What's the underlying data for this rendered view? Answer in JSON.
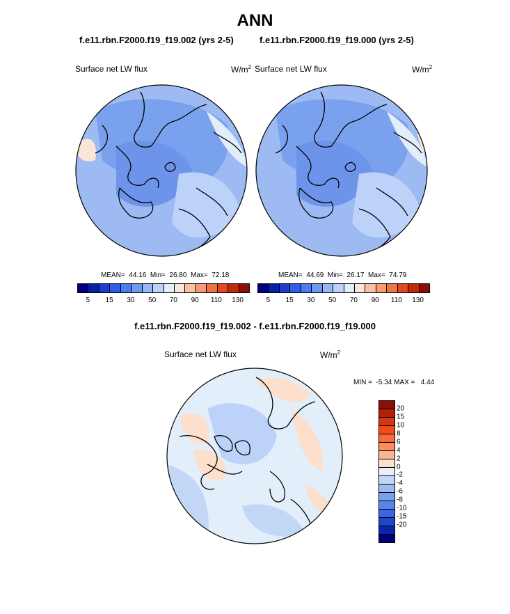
{
  "title": "ANN",
  "panels": [
    {
      "case_title": "f.e11.rbn.F2000.f19_f19.002 (yrs 2-5)",
      "variable": "Surface net LW flux",
      "units": "W/m",
      "units_sup": "2",
      "mean_label": "MEAN=",
      "mean": "44.16",
      "min_label": "Min=",
      "min": "26.80",
      "max_label": "Max=",
      "max": "72.18"
    },
    {
      "case_title": "f.e11.rbn.F2000.f19_f19.000 (yrs 2-5)",
      "variable": "Surface net LW flux",
      "units": "W/m",
      "units_sup": "2",
      "mean_label": "MEAN=",
      "mean": "44.69",
      "min_label": "Min=",
      "min": "26.17",
      "max_label": "Max=",
      "max": "74.79"
    }
  ],
  "colorbar_abs": {
    "colors": [
      "#00007f",
      "#0a1ea8",
      "#1d3fd1",
      "#2f5ee8",
      "#4a7ef0",
      "#6d9bf2",
      "#95b8f6",
      "#bcd2f8",
      "#e3eefb",
      "#fbe4d8",
      "#f9c1a3",
      "#f59c73",
      "#f07544",
      "#e34a20",
      "#c12a0a",
      "#8c0e05"
    ],
    "ticks": [
      "5",
      "15",
      "30",
      "50",
      "70",
      "90",
      "110",
      "130"
    ]
  },
  "difference": {
    "title": "f.e11.rbn.F2000.f19_f19.002 - f.e11.rbn.F2000.f19_f19.000",
    "variable": "Surface net LW flux",
    "units": "W/m",
    "units_sup": "2",
    "min_label": "MIN =",
    "min": "-5.34",
    "max_label": "MAX =",
    "max": "4.44"
  },
  "colorbar_diff": {
    "colors": [
      "#8c0e05",
      "#b3200a",
      "#d93510",
      "#f04c1c",
      "#f86a37",
      "#fa8d60",
      "#fcb593",
      "#fde0cc",
      "#e8f0fb",
      "#c2d6f6",
      "#9dbbf2",
      "#7aa1ee",
      "#5985ea",
      "#3a66e0",
      "#1f45cc",
      "#0b25a8",
      "#00007f"
    ],
    "ticks": [
      "20",
      "15",
      "10",
      "8",
      "6",
      "4",
      "2",
      "0",
      "-2",
      "-4",
      "-6",
      "-8",
      "-10",
      "-15",
      "-20"
    ]
  },
  "chart_data": {
    "type": "map",
    "projection": "north polar stereographic",
    "maps": [
      {
        "case": "f.e11.rbn.F2000.f19_f19.002 (yrs 2-5)",
        "field": "Surface net LW flux",
        "units": "W/m2",
        "mean": 44.16,
        "min": 26.8,
        "max": 72.18
      },
      {
        "case": "f.e11.rbn.F2000.f19_f19.000 (yrs 2-5)",
        "field": "Surface net LW flux",
        "units": "W/m2",
        "mean": 44.69,
        "min": 26.17,
        "max": 74.79
      },
      {
        "case": "f.e11.rbn.F2000.f19_f19.002 - f.e11.rbn.F2000.f19_f19.000",
        "field": "Surface net LW flux",
        "units": "W/m2",
        "min": -5.34,
        "max": 4.44
      }
    ],
    "levels_abs": [
      5,
      15,
      30,
      50,
      70,
      90,
      110,
      130
    ],
    "levels_diff": [
      -20,
      -15,
      -10,
      -8,
      -6,
      -4,
      -2,
      0,
      2,
      4,
      6,
      8,
      10,
      15,
      20
    ]
  }
}
